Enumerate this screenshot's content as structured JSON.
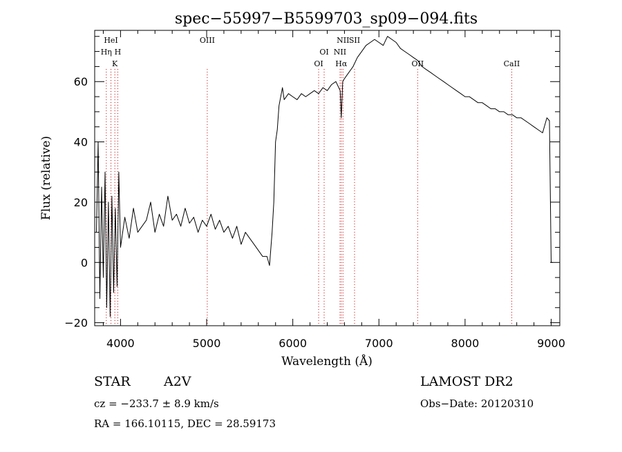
{
  "chart_data": {
    "type": "line",
    "title": "spec−55997−B5599703_sp09−094.fits",
    "xlabel": "Wavelength (Å)",
    "ylabel": "Flux (relative)",
    "xlim": [
      3700,
      9100
    ],
    "ylim": [
      -21,
      77
    ],
    "xticks": [
      4000,
      5000,
      6000,
      7000,
      8000,
      9000
    ],
    "yticks": [
      -20,
      0,
      20,
      40,
      60
    ],
    "xtick_labels": [
      "4000",
      "5000",
      "6000",
      "7000",
      "8000",
      "9000"
    ],
    "ytick_labels": [
      "−20",
      "0",
      "20",
      "40",
      "60"
    ],
    "xminor_step": 200,
    "yminor_step": 5,
    "grid": false,
    "legend": "none",
    "line_color": "#000000",
    "marker_color": "#cc0000",
    "series": [
      {
        "x": [
          3720,
          3740,
          3760,
          3780,
          3800,
          3820,
          3840,
          3860,
          3880,
          3900,
          3920,
          3940,
          3960,
          3980,
          4000,
          4050,
          4100,
          4150,
          4200,
          4250,
          4300,
          4350,
          4400,
          4450,
          4500,
          4550,
          4600,
          4650,
          4700,
          4750,
          4800,
          4850,
          4900,
          4950,
          5000,
          5050,
          5100,
          5150,
          5200,
          5250,
          5300,
          5350,
          5400,
          5450,
          5500,
          5550,
          5600,
          5650,
          5700,
          5730,
          5760,
          5780,
          5800,
          5820,
          5840,
          5860,
          5880,
          5900,
          5950,
          6000,
          6050,
          6100,
          6150,
          6200,
          6250,
          6300,
          6350,
          6400,
          6450,
          6500,
          6550,
          6563,
          6580,
          6600,
          6650,
          6700,
          6750,
          6800,
          6850,
          6900,
          6950,
          7000,
          7050,
          7100,
          7150,
          7200,
          7250,
          7300,
          7350,
          7400,
          7450,
          7500,
          7550,
          7600,
          7650,
          7700,
          7750,
          7800,
          7850,
          7900,
          7950,
          8000,
          8050,
          8100,
          8150,
          8200,
          8250,
          8300,
          8350,
          8400,
          8450,
          8500,
          8550,
          8600,
          8650,
          8700,
          8750,
          8800,
          8850,
          8900,
          8950,
          8980,
          9000,
          9020
        ],
        "y": [
          10,
          40,
          -12,
          25,
          -5,
          30,
          -15,
          20,
          -18,
          22,
          -10,
          18,
          -8,
          30,
          5,
          15,
          8,
          18,
          10,
          12,
          14,
          20,
          10,
          16,
          12,
          22,
          14,
          16,
          12,
          18,
          13,
          15,
          10,
          14,
          12,
          16,
          11,
          14,
          10,
          12,
          8,
          12,
          6,
          10,
          8,
          6,
          4,
          2,
          2,
          -1,
          10,
          20,
          40,
          44,
          52,
          55,
          58,
          54,
          56,
          55,
          54,
          56,
          55,
          56,
          57,
          56,
          58,
          57,
          59,
          60,
          57,
          48,
          60,
          61,
          63,
          65,
          68,
          70,
          72,
          73,
          74,
          73,
          72,
          75,
          74,
          73,
          71,
          70,
          69,
          68,
          67,
          65,
          64,
          63,
          62,
          61,
          60,
          59,
          58,
          57,
          56,
          55,
          55,
          54,
          53,
          53,
          52,
          51,
          51,
          50,
          50,
          49,
          49,
          48,
          48,
          47,
          46,
          45,
          44,
          43,
          48,
          47,
          0,
          0
        ]
      }
    ],
    "line_markers": [
      {
        "x": 3889,
        "label": "HeI",
        "row": 1
      },
      {
        "x": 3835,
        "label": "Hη",
        "row": 2
      },
      {
        "x": 3934,
        "label": "K",
        "row": 3
      },
      {
        "x": 3968,
        "label": "H",
        "row": 2
      },
      {
        "x": 5007,
        "label": "OIII",
        "row": 1
      },
      {
        "x": 6300,
        "label": "OI",
        "row": 3
      },
      {
        "x": 6364,
        "label": "OI",
        "row": 2
      },
      {
        "x": 6548,
        "label": "NII",
        "row": 2
      },
      {
        "x": 6563,
        "label": "Hα",
        "row": 3
      },
      {
        "x": 6583,
        "label": "NII",
        "row": 1
      },
      {
        "x": 6717,
        "label": "SII",
        "row": 1
      },
      {
        "x": 7450,
        "label": "OII",
        "row": 3
      },
      {
        "x": 8542,
        "label": "CaII",
        "row": 3
      }
    ]
  },
  "info": {
    "object_class": "STAR",
    "subclass": "A2V",
    "survey": "LAMOST DR2",
    "cz": "cz = −233.7 ± 8.9 km/s",
    "obs_date": "Obs−Date: 20120310",
    "coords": "RA = 166.10115, DEC =  28.59173"
  }
}
